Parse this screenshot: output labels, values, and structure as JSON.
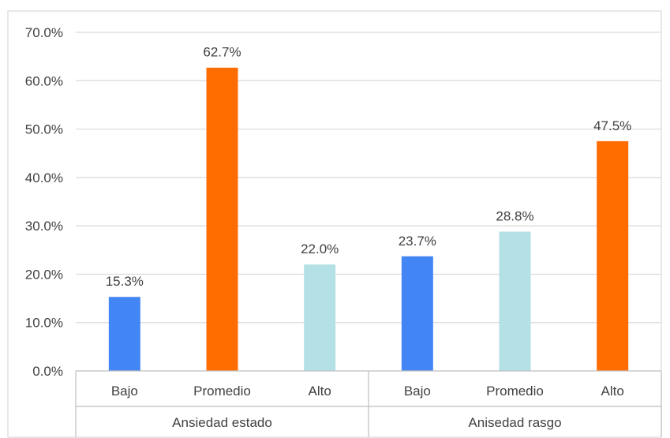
{
  "chart_data": {
    "type": "bar",
    "title": "",
    "xlabel": "",
    "ylabel": "",
    "ylim": [
      0,
      70
    ],
    "y_ticks": [
      "0.0%",
      "10.0%",
      "20.0%",
      "30.0%",
      "40.0%",
      "50.0%",
      "60.0%",
      "70.0%"
    ],
    "grid": true,
    "legend": "none",
    "groups": [
      {
        "label": "Ansiedad estado",
        "bars": [
          {
            "category": "Bajo",
            "value": 15.3,
            "label": "15.3%",
            "color": "#4285f4"
          },
          {
            "category": "Promedio",
            "value": 62.7,
            "label": "62.7%",
            "color": "#ff6d01"
          },
          {
            "category": "Alto",
            "value": 22.0,
            "label": "22.0%",
            "color": "#b4e1e6"
          }
        ]
      },
      {
        "label": "Anisedad rasgo",
        "bars": [
          {
            "category": "Bajo",
            "value": 23.7,
            "label": "23.7%",
            "color": "#4285f4"
          },
          {
            "category": "Promedio",
            "value": 28.8,
            "label": "28.8%",
            "color": "#b4e1e6"
          },
          {
            "category": "Alto",
            "value": 47.5,
            "label": "47.5%",
            "color": "#ff6d01"
          }
        ]
      }
    ]
  }
}
